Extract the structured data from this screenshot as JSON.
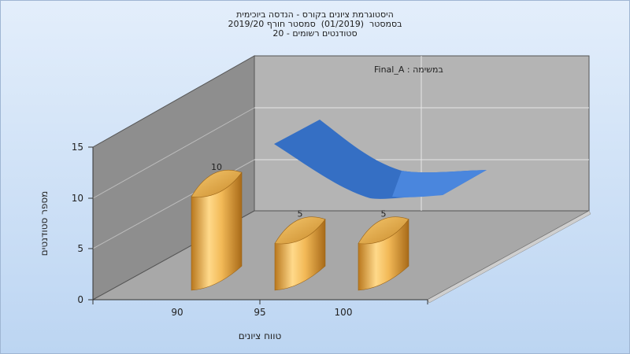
{
  "chart_data": {
    "type": "bar",
    "title_lines": [
      "היסטוגרמת ציונים בקורס - הנדסה ביוכימית",
      "בסמסטר  (01/2019)  סמסטר חורף 2019/20",
      "סטודנטים רשומים - 20"
    ],
    "categories": [
      "90",
      "95",
      "100"
    ],
    "values": [
      10,
      5,
      5
    ],
    "data_labels": [
      "10",
      "5",
      "5"
    ],
    "ylim": [
      0,
      15
    ],
    "yticks": [
      "0",
      "5",
      "10",
      "15"
    ],
    "xlabel": "טווח ציונים",
    "ylabel": "מספר סטודנטים",
    "legend_text": "במשימה : Final_A",
    "grid": true,
    "colors": {
      "bar": "#e0a040",
      "bar_dark": "#b07020",
      "curve": "#3a78d0",
      "back_wall": "#b4b4b4",
      "side_wall": "#8f8f8f",
      "floor": "#a9a9a9"
    }
  }
}
